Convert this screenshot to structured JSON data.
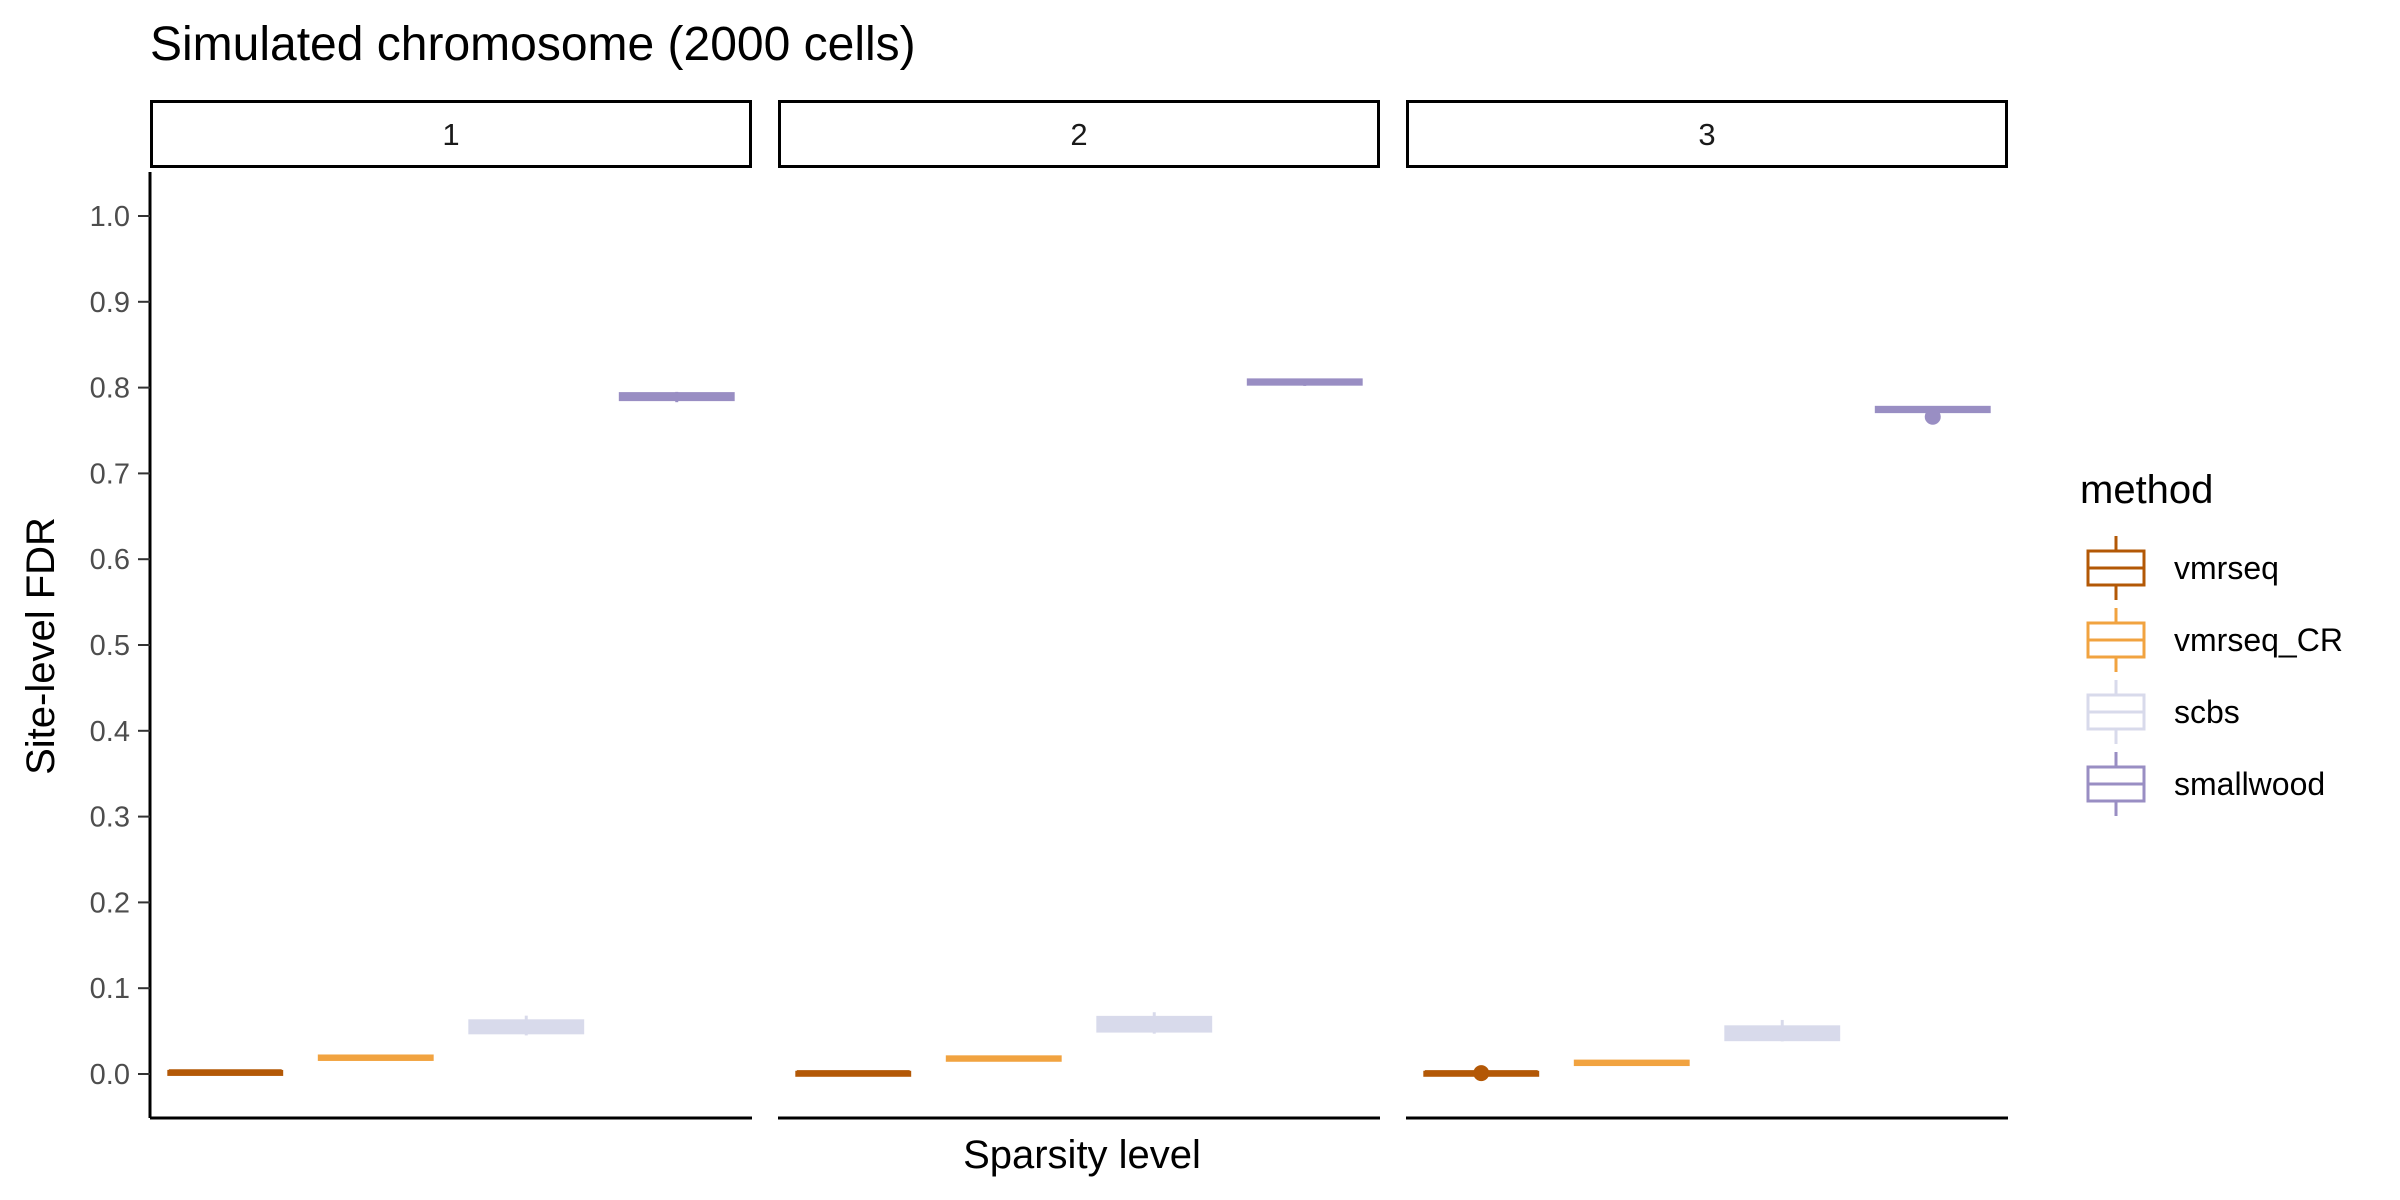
{
  "chart_data": {
    "type": "boxplot",
    "title": "Simulated chromosome (2000 cells)",
    "xlabel": "Sparsity level",
    "ylabel": "Site-level FDR",
    "ylim": [
      0,
      1
    ],
    "yticks": [
      "0.0",
      "0.1",
      "0.2",
      "0.3",
      "0.4",
      "0.5",
      "0.6",
      "0.7",
      "0.8",
      "0.9",
      "1.0"
    ],
    "facets": [
      "1",
      "2",
      "3"
    ],
    "legend": {
      "title": "method",
      "position": "right"
    },
    "grid": false,
    "series": [
      {
        "name": "vmrseq",
        "color": "#B35806",
        "boxes": [
          {
            "facet": "1",
            "q1": 0.001,
            "median": 0.002,
            "q3": 0.003,
            "whisker_low": 0.0,
            "whisker_high": 0.004,
            "outliers": []
          },
          {
            "facet": "2",
            "q1": 0.0,
            "median": 0.001,
            "q3": 0.002,
            "whisker_low": 0.0,
            "whisker_high": 0.003,
            "outliers": []
          },
          {
            "facet": "3",
            "q1": 0.0,
            "median": 0.001,
            "q3": 0.002,
            "whisker_low": 0.0,
            "whisker_high": 0.003,
            "outliers": [
              0.001
            ]
          }
        ]
      },
      {
        "name": "vmrseq_CR",
        "color": "#F1A340",
        "boxes": [
          {
            "facet": "1",
            "q1": 0.017,
            "median": 0.019,
            "q3": 0.021,
            "whisker_low": 0.016,
            "whisker_high": 0.022,
            "outliers": []
          },
          {
            "facet": "2",
            "q1": 0.016,
            "median": 0.018,
            "q3": 0.02,
            "whisker_low": 0.015,
            "whisker_high": 0.021,
            "outliers": []
          },
          {
            "facet": "3",
            "q1": 0.011,
            "median": 0.013,
            "q3": 0.015,
            "whisker_low": 0.01,
            "whisker_high": 0.016,
            "outliers": []
          }
        ]
      },
      {
        "name": "scbs",
        "color": "#D8DAEB",
        "boxes": [
          {
            "facet": "1",
            "q1": 0.048,
            "median": 0.055,
            "q3": 0.062,
            "whisker_low": 0.045,
            "whisker_high": 0.068,
            "outliers": []
          },
          {
            "facet": "2",
            "q1": 0.05,
            "median": 0.058,
            "q3": 0.066,
            "whisker_low": 0.047,
            "whisker_high": 0.072,
            "outliers": []
          },
          {
            "facet": "3",
            "q1": 0.04,
            "median": 0.047,
            "q3": 0.055,
            "whisker_low": 0.038,
            "whisker_high": 0.063,
            "outliers": []
          }
        ]
      },
      {
        "name": "smallwood",
        "color": "#998EC3",
        "boxes": [
          {
            "facet": "1",
            "q1": 0.786,
            "median": 0.789,
            "q3": 0.793,
            "whisker_low": 0.783,
            "whisker_high": 0.795,
            "outliers": []
          },
          {
            "facet": "2",
            "q1": 0.804,
            "median": 0.806,
            "q3": 0.809,
            "whisker_low": 0.802,
            "whisker_high": 0.81,
            "outliers": []
          },
          {
            "facet": "3",
            "q1": 0.772,
            "median": 0.774,
            "q3": 0.777,
            "whisker_low": 0.771,
            "whisker_high": 0.778,
            "outliers": [
              0.766
            ]
          }
        ]
      }
    ]
  }
}
